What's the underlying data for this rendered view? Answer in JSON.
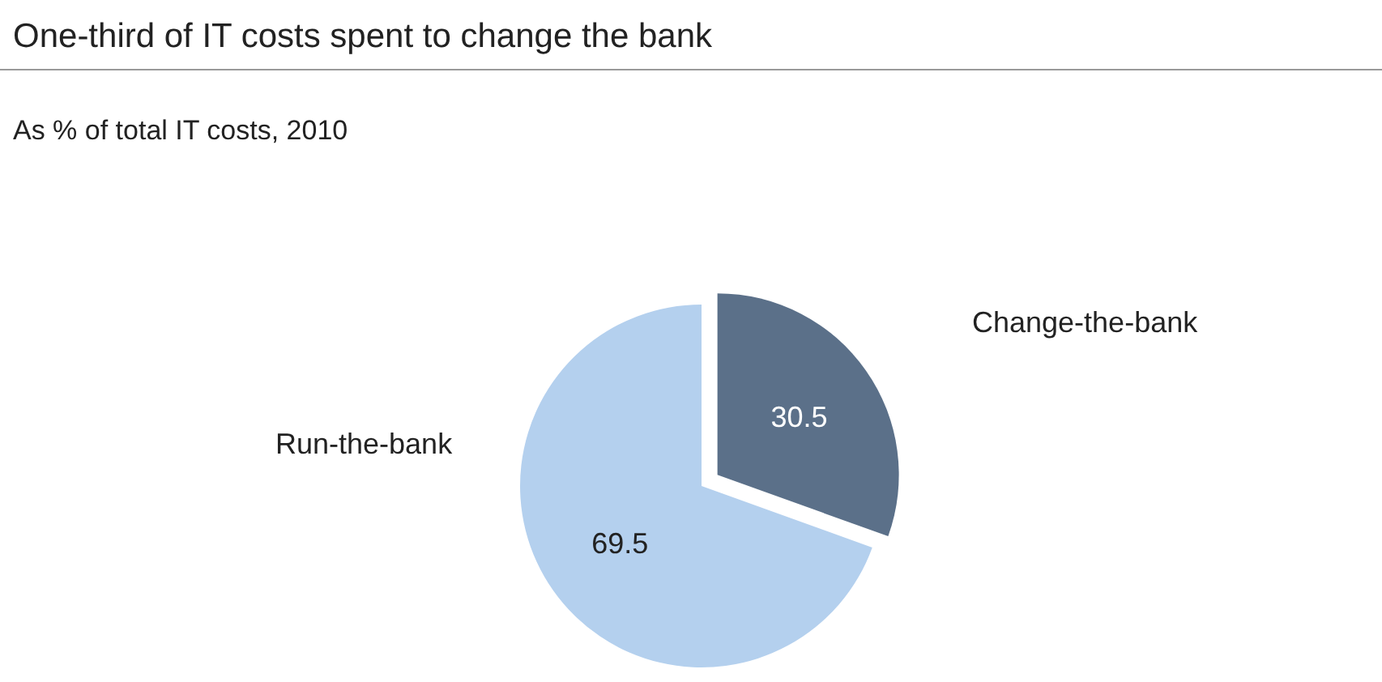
{
  "chart_data": {
    "type": "pie",
    "title": "One-third of IT costs spent to change the bank",
    "subtitle": "As % of total IT costs, 2010",
    "categories": [
      "Run-the-bank",
      "Change-the-bank"
    ],
    "values": [
      69.5,
      30.5
    ],
    "colors": [
      "#b4d0ee",
      "#5b7089"
    ],
    "data_labels": true
  }
}
